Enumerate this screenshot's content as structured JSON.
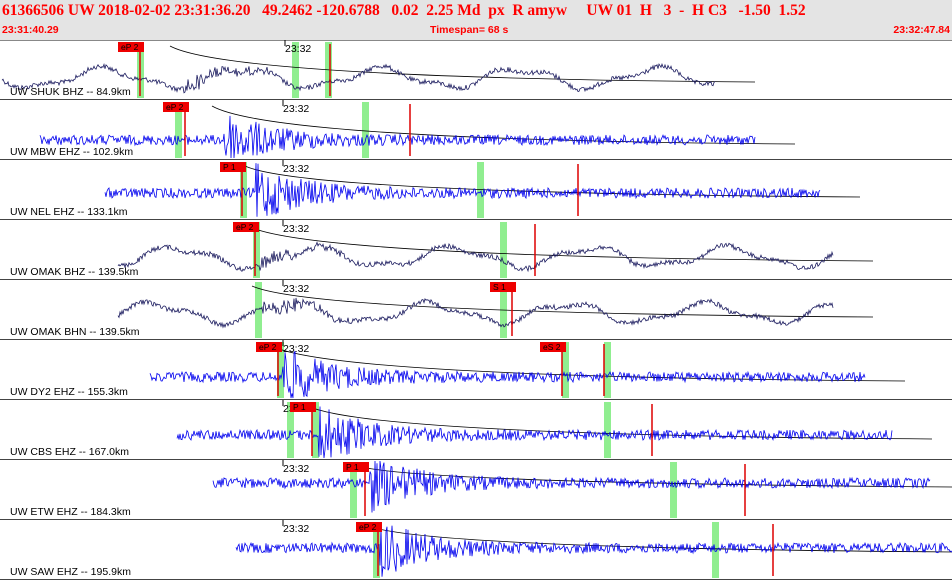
{
  "header": {
    "title_line": "61366506 UW 2018-02-02 23:31:36.20   49.2462 -120.6788   0.02  2.25 Md  px  R amyw     UW 01  H   3  -  H C3   -1.50  1.52",
    "start_time": "23:31:40.29",
    "timespan": "Timespan=  68 s",
    "end_time": "23:32:47.84"
  },
  "colors": {
    "dark_trace": "#1a1a5e",
    "blue_trace": "#0000ee",
    "pick": "#dd0000",
    "pick_label_bg": "#ee0000",
    "green_window": "#90ee90",
    "divider": "#444444"
  },
  "traces": [
    {
      "label": "UW SHUK BHZ -- 84.9km",
      "time_mark": "23:32",
      "color": "dark",
      "style": "slow",
      "picks": [
        {
          "label": "eP 2"
        }
      ]
    },
    {
      "label": "UW MBW EHZ -- 102.9km",
      "time_mark": "23:32",
      "color": "blue",
      "style": "burst",
      "picks": [
        {
          "label": "eP 2"
        }
      ]
    },
    {
      "label": "UW NEL EHZ -- 133.1km",
      "time_mark": "23:32",
      "color": "blue",
      "style": "burst",
      "picks": [
        {
          "label": "P 1"
        }
      ]
    },
    {
      "label": "UW OMAK BHZ -- 139.5km",
      "time_mark": "23:32",
      "color": "dark",
      "style": "slow",
      "picks": [
        {
          "label": "eP 2"
        }
      ]
    },
    {
      "label": "UW OMAK BHN -- 139.5km",
      "time_mark": "23:32",
      "color": "dark",
      "style": "slow",
      "picks": [
        {
          "label": "S 1"
        }
      ]
    },
    {
      "label": "UW DY2 EHZ -- 155.3km",
      "time_mark": "23:32",
      "color": "blue",
      "style": "burst",
      "picks": [
        {
          "label": "eP 2"
        },
        {
          "label": "eS 2"
        }
      ]
    },
    {
      "label": "UW CBS EHZ -- 167.0km",
      "time_mark": "23:32",
      "color": "blue",
      "style": "burst",
      "picks": [
        {
          "label": "P 1"
        }
      ]
    },
    {
      "label": "UW ETW EHZ -- 184.3km",
      "time_mark": "23:32",
      "color": "blue",
      "style": "burst",
      "picks": [
        {
          "label": "P 1"
        }
      ]
    },
    {
      "label": "UW SAW EHZ -- 195.9km",
      "time_mark": "23:32",
      "color": "blue",
      "style": "burst",
      "picks": [
        {
          "label": "eP 2"
        }
      ]
    }
  ]
}
